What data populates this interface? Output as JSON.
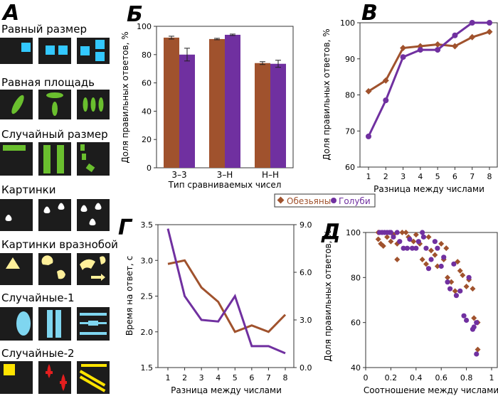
{
  "panel_letters": {
    "a": "А",
    "b": "Б",
    "v": "В",
    "g": "Г",
    "d": "Д"
  },
  "stimuli_rows": [
    {
      "label": "Равный размер"
    },
    {
      "label": "Равная площадь"
    },
    {
      "label": "Случайный размер"
    },
    {
      "label": "Картинки"
    },
    {
      "label": "Картинки вразнобой"
    },
    {
      "label": "Случайные-1"
    },
    {
      "label": "Случайные-2"
    }
  ],
  "legend": {
    "monkeys": "Обезьяны",
    "pigeons": "Голуби"
  },
  "colors": {
    "monkeys": "#a0522d",
    "pigeons": "#7030a0",
    "tile_bg": "#1c1c1c",
    "blue": "#33c8ff",
    "green": "#6abf2e",
    "white": "#ffffff",
    "yellow": "#fff09a",
    "light_blue": "#7fd6f0",
    "red": "#e41e1e",
    "bright_yellow": "#ffe400"
  },
  "chart_data": [
    {
      "id": "b",
      "type": "bar",
      "ylabel": "Доля правильных ответов, %",
      "xlabel": "Тип сравниваемых чисел",
      "categories": [
        "3–3",
        "3–Н",
        "Н–Н"
      ],
      "ylim": [
        0,
        100
      ],
      "yticks": [
        0,
        20,
        40,
        60,
        80,
        100
      ],
      "series": [
        {
          "name": "Обезьяны",
          "values": [
            92,
            91,
            74
          ],
          "errors": [
            1,
            0.5,
            1
          ]
        },
        {
          "name": "Голуби",
          "values": [
            80,
            94,
            73.5
          ],
          "errors": [
            4.5,
            0.5,
            2.5
          ]
        }
      ]
    },
    {
      "id": "v",
      "type": "line",
      "ylabel": "Доля правильных ответов, %",
      "xlabel": "Разница между числами",
      "x": [
        1,
        2,
        3,
        4,
        5,
        6,
        7,
        8
      ],
      "ylim": [
        60,
        100
      ],
      "yticks": [
        60,
        70,
        80,
        90,
        100
      ],
      "series": [
        {
          "name": "Обезьяны",
          "values": [
            81,
            84,
            93,
            93.5,
            94,
            93.5,
            96,
            97.5
          ]
        },
        {
          "name": "Голуби",
          "values": [
            68.5,
            78.5,
            90.5,
            92.5,
            92.5,
            96.5,
            100,
            100
          ]
        }
      ]
    },
    {
      "id": "g",
      "type": "line",
      "ylabel": "Время на ответ, с",
      "xlabel": "Разница между числами",
      "x": [
        1,
        2,
        3,
        4,
        5,
        6,
        7,
        8
      ],
      "ylim": [
        1.5,
        3.5
      ],
      "yticks": [
        "1.5",
        "2.0",
        "2.5",
        "3.0",
        "3.5"
      ],
      "ylim_right": [
        0,
        9
      ],
      "yticks_right": [
        "0.0",
        "3.0",
        "6.0",
        "9.0"
      ],
      "series": [
        {
          "name": "Обезьяны",
          "axis": "left",
          "values": [
            2.95,
            3.0,
            2.62,
            2.42,
            2.0,
            2.09,
            2.0,
            2.24
          ]
        },
        {
          "name": "Голуби",
          "axis": "right",
          "values": [
            8.75,
            4.5,
            3.0,
            2.9,
            4.5,
            1.35,
            1.35,
            0.9
          ]
        }
      ]
    },
    {
      "id": "d",
      "type": "scatter",
      "ylabel": "Доля правильных ответов, %",
      "xlabel": "Соотношение между числами",
      "xlim": [
        0,
        1
      ],
      "xticks": [
        "0",
        "0.2",
        "0.4",
        "0.6",
        "0.8",
        "1"
      ],
      "ylim": [
        40,
        100
      ],
      "yticks": [
        40,
        60,
        80,
        100
      ],
      "series": [
        {
          "name": "Обезьяны",
          "points": [
            [
              0.1,
              100
            ],
            [
              0.1,
              97
            ],
            [
              0.12,
              95
            ],
            [
              0.14,
              94
            ],
            [
              0.17,
              98
            ],
            [
              0.2,
              96
            ],
            [
              0.22,
              99
            ],
            [
              0.25,
              95
            ],
            [
              0.25,
              88
            ],
            [
              0.29,
              100
            ],
            [
              0.32,
              100
            ],
            [
              0.34,
              98
            ],
            [
              0.38,
              96
            ],
            [
              0.4,
              99
            ],
            [
              0.43,
              95
            ],
            [
              0.45,
              88
            ],
            [
              0.48,
              86
            ],
            [
              0.5,
              98
            ],
            [
              0.52,
              92
            ],
            [
              0.55,
              90
            ],
            [
              0.57,
              85
            ],
            [
              0.6,
              95
            ],
            [
              0.62,
              88
            ],
            [
              0.64,
              93
            ],
            [
              0.65,
              80
            ],
            [
              0.68,
              78
            ],
            [
              0.71,
              74
            ],
            [
              0.73,
              87
            ],
            [
              0.75,
              83
            ],
            [
              0.77,
              81
            ],
            [
              0.8,
              76
            ],
            [
              0.82,
              79
            ],
            [
              0.85,
              75
            ],
            [
              0.86,
              62
            ],
            [
              0.89,
              48
            ],
            [
              0.89,
              60
            ]
          ]
        },
        {
          "name": "Голуби",
          "points": [
            [
              0.11,
              100
            ],
            [
              0.13,
              100
            ],
            [
              0.15,
              100
            ],
            [
              0.17,
              100
            ],
            [
              0.19,
              100
            ],
            [
              0.2,
              100
            ],
            [
              0.22,
              98
            ],
            [
              0.25,
              100
            ],
            [
              0.27,
              96
            ],
            [
              0.3,
              93
            ],
            [
              0.33,
              93
            ],
            [
              0.35,
              97
            ],
            [
              0.37,
              93
            ],
            [
              0.4,
              93
            ],
            [
              0.42,
              96
            ],
            [
              0.45,
              100
            ],
            [
              0.46,
              98
            ],
            [
              0.48,
              93
            ],
            [
              0.5,
              84
            ],
            [
              0.52,
              88
            ],
            [
              0.55,
              96
            ],
            [
              0.57,
              93
            ],
            [
              0.6,
              85
            ],
            [
              0.62,
              89
            ],
            [
              0.65,
              78
            ],
            [
              0.67,
              75
            ],
            [
              0.7,
              86
            ],
            [
              0.72,
              72
            ],
            [
              0.75,
              74
            ],
            [
              0.78,
              63
            ],
            [
              0.8,
              61
            ],
            [
              0.82,
              80
            ],
            [
              0.85,
              57
            ],
            [
              0.86,
              58
            ],
            [
              0.88,
              60
            ],
            [
              0.88,
              46
            ]
          ]
        }
      ]
    }
  ]
}
